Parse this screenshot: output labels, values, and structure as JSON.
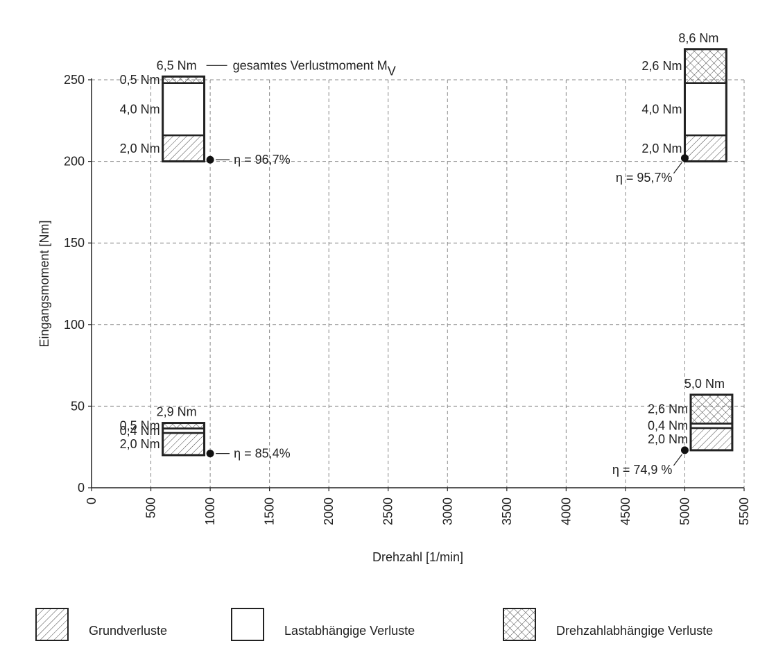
{
  "chart_data": {
    "type": "bar",
    "xlabel": "Drehzahl [1/min]",
    "ylabel": "Eingangsmoment [Nm]",
    "xlim": [
      0,
      5500
    ],
    "ylim": [
      0,
      250
    ],
    "x_ticks": [
      "0",
      "500",
      "1000",
      "1500",
      "2000",
      "2500",
      "3000",
      "3500",
      "4000",
      "4500",
      "5000",
      "5500"
    ],
    "y_ticks": [
      "0",
      "50",
      "100",
      "150",
      "200",
      "250"
    ],
    "grid": true,
    "legend_placement": "bottom",
    "legend": [
      {
        "name": "Grundverluste",
        "pattern": "hatch"
      },
      {
        "name": "Lastabhängige Verluste",
        "pattern": "empty"
      },
      {
        "name": "Drehzahlabhängige Verluste",
        "pattern": "crosshatch"
      }
    ],
    "bars": [
      {
        "rpm_start": 600,
        "rpm_end": 950,
        "base": 200,
        "stack": [
          2.0,
          4.0,
          0.5
        ],
        "value_labels": [
          "2,0 Nm",
          "4,0 Nm",
          "0,5 Nm"
        ],
        "total_label": "6,5 Nm",
        "total_annotation": "gesamtes Verlustmoment M",
        "total_annotation_sub": "V",
        "point": {
          "x": 1000,
          "y": 201
        },
        "eta_label": "η = 96,7%"
      },
      {
        "rpm_start": 5000,
        "rpm_end": 5350,
        "base": 200,
        "stack": [
          2.0,
          4.0,
          2.6
        ],
        "value_labels": [
          "2,0 Nm",
          "4,0 Nm",
          "2,6 Nm"
        ],
        "total_label": "8,6 Nm",
        "point": {
          "x": 5000,
          "y": 202
        },
        "eta_label": "η = 95,7%"
      },
      {
        "rpm_start": 600,
        "rpm_end": 950,
        "base": 20,
        "stack": [
          2.0,
          0.4,
          0.5
        ],
        "value_labels": [
          "2,0 Nm",
          "0,4 Nm",
          "0,5 Nm"
        ],
        "total_label": "2,9 Nm",
        "point": {
          "x": 1000,
          "y": 21
        },
        "eta_label": "η = 85,4%"
      },
      {
        "rpm_start": 5050,
        "rpm_end": 5400,
        "base": 23,
        "stack": [
          2.0,
          0.4,
          2.6
        ],
        "value_labels": [
          "2,0 Nm",
          "0,4 Nm",
          "2,6 Nm"
        ],
        "total_label": "5,0 Nm",
        "point": {
          "x": 5000,
          "y": 23
        },
        "eta_label": "η = 74,9 %"
      }
    ]
  }
}
